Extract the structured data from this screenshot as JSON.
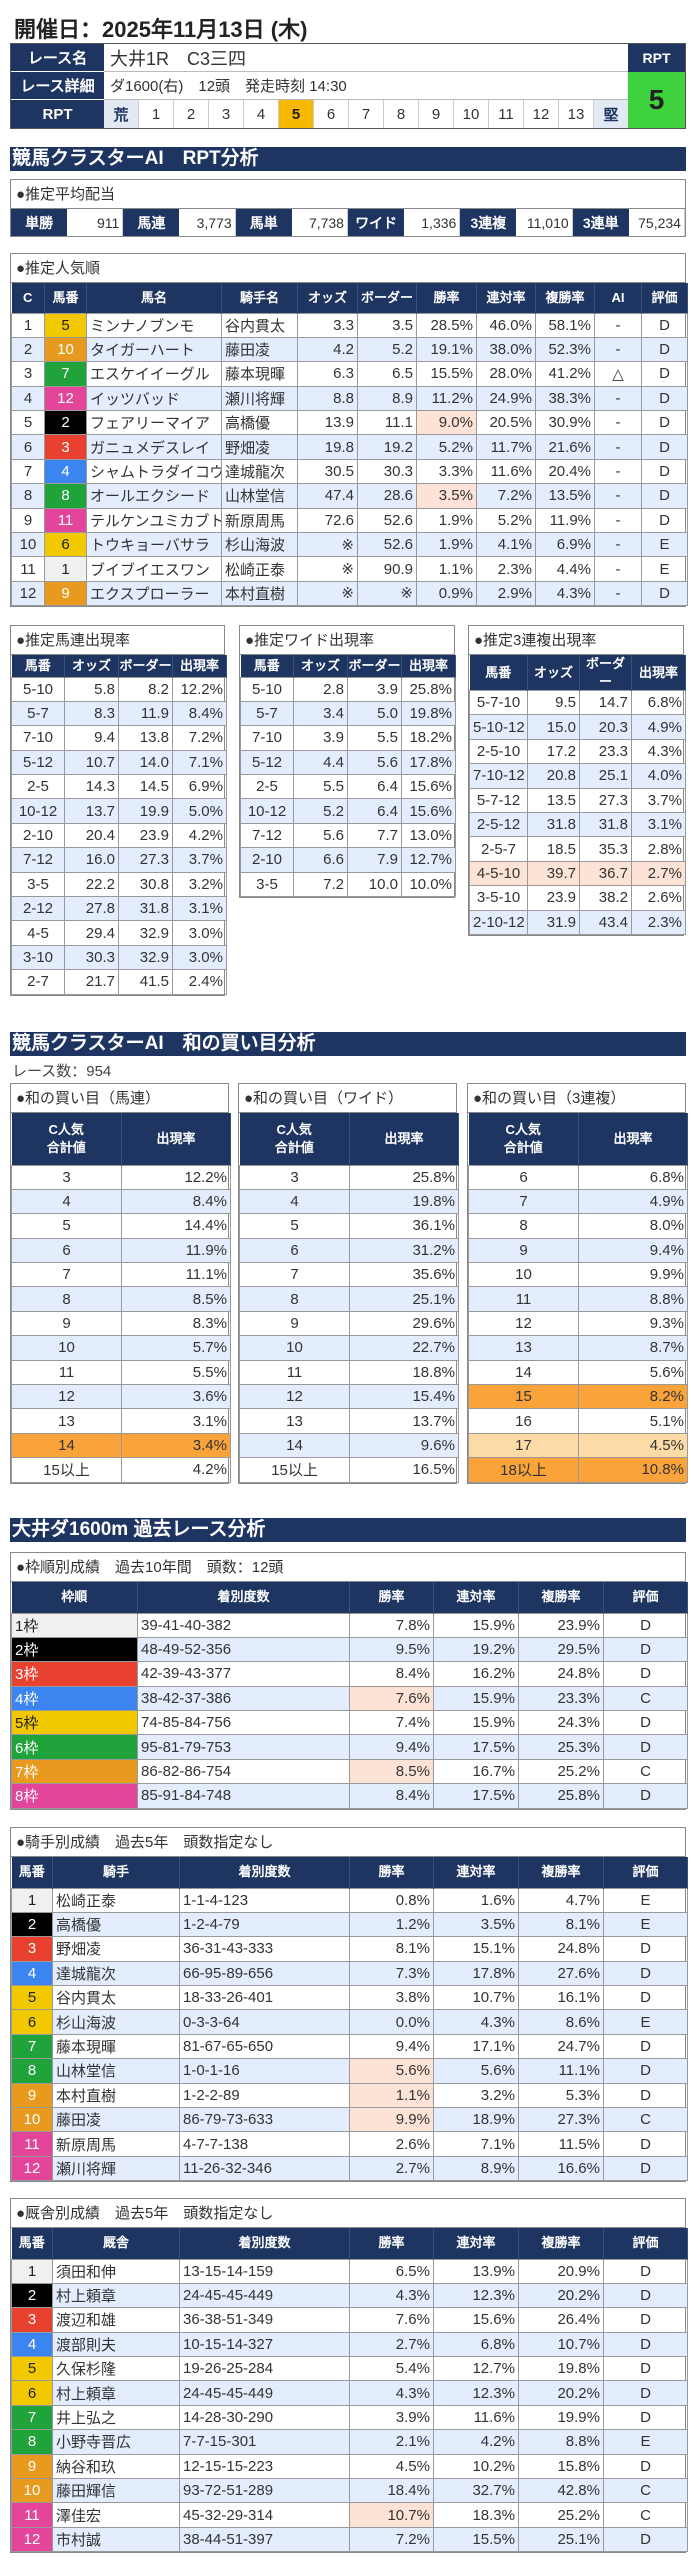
{
  "header": {
    "date": "開催日：2025年11月13日 (木)",
    "race_name_label": "レース名",
    "race_name": "大井1R　C3三四",
    "race_detail_label": "レース詳細",
    "race_detail": "ダ1600(右)　12頭　発走時刻 14:30",
    "rpt_label": "RPT",
    "rpt_scale": [
      "荒",
      "1",
      "2",
      "3",
      "4",
      "5",
      "6",
      "7",
      "8",
      "9",
      "10",
      "11",
      "12",
      "13",
      "堅"
    ],
    "rpt_selected": "5",
    "rpt_box_label": "RPT",
    "rpt_value": "5"
  },
  "colors": {
    "navy": "#1f3561",
    "alt_row": "#e3edfd",
    "pink": "#fde3d6",
    "orange": "#f9a33a",
    "light_orange": "#fddba7",
    "rpt_green": "#3fd23f",
    "rpt_selected": "#f7b900"
  },
  "frame_colors": {
    "1": [
      "#f0f0f0",
      "#222"
    ],
    "2": [
      "#000000",
      "#fff"
    ],
    "3": [
      "#e8412f",
      "#fff"
    ],
    "4": [
      "#3c85f0",
      "#fff"
    ],
    "5": [
      "#f2c800",
      "#222"
    ],
    "6": [
      "#1fa33a",
      "#fff"
    ],
    "7": [
      "#e89a1e",
      "#fff"
    ],
    "8": [
      "#e2459a",
      "#fff"
    ]
  },
  "horse_frame": {
    "1": "1",
    "2": "2",
    "3": "3",
    "4": "4",
    "5": "5",
    "6": "5",
    "7": "6",
    "8": "6",
    "9": "7",
    "10": "7",
    "11": "8",
    "12": "8"
  },
  "rpt_section": {
    "title": "競馬クラスターAI　RPT分析",
    "payout": {
      "title": "●推定平均配当",
      "items": [
        [
          "単勝",
          "911"
        ],
        [
          "馬連",
          "3,773"
        ],
        [
          "馬単",
          "7,738"
        ],
        [
          "ワイド",
          "1,336"
        ],
        [
          "3連複",
          "11,010"
        ],
        [
          "3連単",
          "75,234"
        ]
      ]
    },
    "popularity": {
      "title": "●推定人気順",
      "headers": [
        "C",
        "馬番",
        "馬名",
        "騎手名",
        "オッズ",
        "ボーダー",
        "勝率",
        "連対率",
        "複勝率",
        "AI",
        "評価"
      ],
      "rows": [
        [
          "1",
          "5",
          "ミンナノブンモ",
          "谷内貫太",
          "3.3",
          "3.5",
          "28.5%",
          "46.0%",
          "58.1%",
          "-",
          "D"
        ],
        [
          "2",
          "10",
          "タイガーハート",
          "藤田凌",
          "4.2",
          "5.2",
          "19.1%",
          "38.0%",
          "52.3%",
          "-",
          "D"
        ],
        [
          "3",
          "7",
          "エスケイイーグル",
          "藤本現暉",
          "6.3",
          "6.5",
          "15.5%",
          "28.0%",
          "41.2%",
          "△",
          "D"
        ],
        [
          "4",
          "12",
          "イッツバッド",
          "瀬川将輝",
          "8.8",
          "8.9",
          "11.2%",
          "24.9%",
          "38.3%",
          "-",
          "D"
        ],
        [
          "5",
          "2",
          "フェアリーマイア",
          "高橋優",
          "13.9",
          "11.1",
          "9.0%",
          "20.5%",
          "30.9%",
          "-",
          "D"
        ],
        [
          "6",
          "3",
          "ガニュメデスレイ",
          "野畑凌",
          "19.8",
          "19.2",
          "5.2%",
          "11.7%",
          "21.6%",
          "-",
          "D"
        ],
        [
          "7",
          "4",
          "シャムトラダイコウ",
          "達城龍次",
          "30.5",
          "30.3",
          "3.3%",
          "11.6%",
          "20.4%",
          "-",
          "D"
        ],
        [
          "8",
          "8",
          "オールエクシード",
          "山林堂信",
          "47.4",
          "28.6",
          "3.5%",
          "7.2%",
          "13.5%",
          "-",
          "D"
        ],
        [
          "9",
          "11",
          "テルケンユミカブト",
          "新原周馬",
          "72.6",
          "52.6",
          "1.9%",
          "5.2%",
          "11.9%",
          "-",
          "D"
        ],
        [
          "10",
          "6",
          "トウキョーバサラ",
          "杉山海波",
          "※",
          "52.6",
          "1.9%",
          "4.1%",
          "6.9%",
          "-",
          "E"
        ],
        [
          "11",
          "1",
          "ブイブイエスワン",
          "松崎正泰",
          "※",
          "90.9",
          "1.1%",
          "2.3%",
          "4.4%",
          "-",
          "E"
        ],
        [
          "12",
          "9",
          "エクスプローラー",
          "本村直樹",
          "※",
          "※",
          "0.9%",
          "2.9%",
          "4.3%",
          "-",
          "D"
        ]
      ],
      "highlights": [
        [
          4,
          6,
          "pink"
        ],
        [
          7,
          6,
          "pink"
        ]
      ]
    },
    "umaren": {
      "title": "●推定馬連出現率",
      "headers": [
        "馬番",
        "オッズ",
        "ボーダー",
        "出現率"
      ],
      "rows": [
        [
          "5-10",
          "5.8",
          "8.2",
          "12.2%"
        ],
        [
          "5-7",
          "8.3",
          "11.9",
          "8.4%"
        ],
        [
          "7-10",
          "9.4",
          "13.8",
          "7.2%"
        ],
        [
          "5-12",
          "10.7",
          "14.0",
          "7.1%"
        ],
        [
          "2-5",
          "14.3",
          "14.5",
          "6.9%"
        ],
        [
          "10-12",
          "13.7",
          "19.9",
          "5.0%"
        ],
        [
          "2-10",
          "20.4",
          "23.9",
          "4.2%"
        ],
        [
          "7-12",
          "16.0",
          "27.3",
          "3.7%"
        ],
        [
          "3-5",
          "22.2",
          "30.8",
          "3.2%"
        ],
        [
          "2-12",
          "27.8",
          "31.8",
          "3.1%"
        ],
        [
          "4-5",
          "29.4",
          "32.9",
          "3.0%"
        ],
        [
          "3-10",
          "30.3",
          "32.9",
          "3.0%"
        ],
        [
          "2-7",
          "21.7",
          "41.5",
          "2.4%"
        ]
      ],
      "highlights": []
    },
    "wide": {
      "title": "●推定ワイド出現率",
      "headers": [
        "馬番",
        "オッズ",
        "ボーダー",
        "出現率"
      ],
      "rows": [
        [
          "5-10",
          "2.8",
          "3.9",
          "25.8%"
        ],
        [
          "5-7",
          "3.4",
          "5.0",
          "19.8%"
        ],
        [
          "7-10",
          "3.9",
          "5.5",
          "18.2%"
        ],
        [
          "5-12",
          "4.4",
          "5.6",
          "17.8%"
        ],
        [
          "2-5",
          "5.5",
          "6.4",
          "15.6%"
        ],
        [
          "10-12",
          "5.2",
          "6.4",
          "15.6%"
        ],
        [
          "7-12",
          "5.6",
          "7.7",
          "13.0%"
        ],
        [
          "2-10",
          "6.6",
          "7.9",
          "12.7%"
        ],
        [
          "3-5",
          "7.2",
          "10.0",
          "10.0%"
        ]
      ],
      "highlights": []
    },
    "sanrenpuku": {
      "title": "●推定3連複出現率",
      "headers": [
        "馬番",
        "オッズ",
        "ボーダー",
        "出現率"
      ],
      "rows": [
        [
          "5-7-10",
          "9.5",
          "14.7",
          "6.8%"
        ],
        [
          "5-10-12",
          "15.0",
          "20.3",
          "4.9%"
        ],
        [
          "2-5-10",
          "17.2",
          "23.3",
          "4.3%"
        ],
        [
          "7-10-12",
          "20.8",
          "25.1",
          "4.0%"
        ],
        [
          "5-7-12",
          "13.5",
          "27.3",
          "3.7%"
        ],
        [
          "2-5-12",
          "31.8",
          "31.8",
          "3.1%"
        ],
        [
          "2-5-7",
          "18.5",
          "35.3",
          "2.8%"
        ],
        [
          "4-5-10",
          "39.7",
          "36.7",
          "2.7%"
        ],
        [
          "3-5-10",
          "23.9",
          "38.2",
          "2.6%"
        ],
        [
          "2-10-12",
          "31.9",
          "43.4",
          "2.3%"
        ]
      ],
      "highlights": [
        [
          7,
          0,
          "pink"
        ],
        [
          7,
          1,
          "pink"
        ],
        [
          7,
          2,
          "pink"
        ],
        [
          7,
          3,
          "pink"
        ]
      ]
    }
  },
  "sum_section": {
    "title": "競馬クラスターAI　和の買い目分析",
    "race_count": "レース数：954",
    "umaren": {
      "title": "●和の買い目（馬連）",
      "headers": [
        "C人気\n合計値",
        "出現率"
      ],
      "rows": [
        [
          "3",
          "12.2%"
        ],
        [
          "4",
          "8.4%"
        ],
        [
          "5",
          "14.4%"
        ],
        [
          "6",
          "11.9%"
        ],
        [
          "7",
          "11.1%"
        ],
        [
          "8",
          "8.5%"
        ],
        [
          "9",
          "8.3%"
        ],
        [
          "10",
          "5.7%"
        ],
        [
          "11",
          "5.5%"
        ],
        [
          "12",
          "3.6%"
        ],
        [
          "13",
          "3.1%"
        ],
        [
          "14",
          "3.4%"
        ],
        [
          "15以上",
          "4.2%"
        ]
      ],
      "highlights": [
        [
          11,
          0,
          "orange"
        ],
        [
          11,
          1,
          "orange"
        ]
      ]
    },
    "wide": {
      "title": "●和の買い目（ワイド）",
      "headers": [
        "C人気\n合計値",
        "出現率"
      ],
      "rows": [
        [
          "3",
          "25.8%"
        ],
        [
          "4",
          "19.8%"
        ],
        [
          "5",
          "36.1%"
        ],
        [
          "6",
          "31.2%"
        ],
        [
          "7",
          "35.6%"
        ],
        [
          "8",
          "25.1%"
        ],
        [
          "9",
          "29.6%"
        ],
        [
          "10",
          "22.7%"
        ],
        [
          "11",
          "18.8%"
        ],
        [
          "12",
          "15.4%"
        ],
        [
          "13",
          "13.7%"
        ],
        [
          "14",
          "9.6%"
        ],
        [
          "15以上",
          "16.5%"
        ]
      ],
      "highlights": []
    },
    "sanrenpuku": {
      "title": "●和の買い目（3連複）",
      "headers": [
        "C人気\n合計値",
        "出現率"
      ],
      "rows": [
        [
          "6",
          "6.8%"
        ],
        [
          "7",
          "4.9%"
        ],
        [
          "8",
          "8.0%"
        ],
        [
          "9",
          "9.4%"
        ],
        [
          "10",
          "9.9%"
        ],
        [
          "11",
          "8.8%"
        ],
        [
          "12",
          "9.3%"
        ],
        [
          "13",
          "8.7%"
        ],
        [
          "14",
          "5.6%"
        ],
        [
          "15",
          "8.2%"
        ],
        [
          "16",
          "5.1%"
        ],
        [
          "17",
          "4.5%"
        ],
        [
          "18以上",
          "10.8%"
        ]
      ],
      "highlights": [
        [
          9,
          0,
          "orange"
        ],
        [
          9,
          1,
          "orange"
        ],
        [
          11,
          0,
          "light_orange"
        ],
        [
          11,
          1,
          "light_orange"
        ],
        [
          12,
          0,
          "orange"
        ],
        [
          12,
          1,
          "orange"
        ]
      ]
    }
  },
  "past_section": {
    "title": "大井ダ1600m 過去レース分析",
    "frame": {
      "title": "●枠順別成績　過去10年間　頭数：12頭",
      "headers": [
        "枠順",
        "着別度数",
        "勝率",
        "連対率",
        "複勝率",
        "評価"
      ],
      "rows": [
        [
          "1枠",
          "39-41-40-382",
          "7.8%",
          "15.9%",
          "23.9%",
          "D"
        ],
        [
          "2枠",
          "48-49-52-356",
          "9.5%",
          "19.2%",
          "29.5%",
          "D"
        ],
        [
          "3枠",
          "42-39-43-377",
          "8.4%",
          "16.2%",
          "24.8%",
          "D"
        ],
        [
          "4枠",
          "38-42-37-386",
          "7.6%",
          "15.9%",
          "23.3%",
          "C"
        ],
        [
          "5枠",
          "74-85-84-756",
          "7.4%",
          "15.9%",
          "24.3%",
          "D"
        ],
        [
          "6枠",
          "95-81-79-753",
          "9.4%",
          "17.5%",
          "25.3%",
          "D"
        ],
        [
          "7枠",
          "86-82-86-754",
          "8.5%",
          "16.7%",
          "25.2%",
          "C"
        ],
        [
          "8枠",
          "85-91-84-748",
          "8.4%",
          "17.5%",
          "25.8%",
          "D"
        ]
      ],
      "highlights": [
        [
          3,
          2,
          "pink"
        ],
        [
          6,
          2,
          "pink"
        ]
      ]
    },
    "jockey": {
      "title": "●騎手別成績　過去5年　頭数指定なし",
      "headers": [
        "馬番",
        "騎手",
        "着別度数",
        "勝率",
        "連対率",
        "複勝率",
        "評価"
      ],
      "rows": [
        [
          "1",
          "松崎正泰",
          "1-1-4-123",
          "0.8%",
          "1.6%",
          "4.7%",
          "E"
        ],
        [
          "2",
          "高橋優",
          "1-2-4-79",
          "1.2%",
          "3.5%",
          "8.1%",
          "E"
        ],
        [
          "3",
          "野畑凌",
          "36-31-43-333",
          "8.1%",
          "15.1%",
          "24.8%",
          "D"
        ],
        [
          "4",
          "達城龍次",
          "66-95-89-656",
          "7.3%",
          "17.8%",
          "27.6%",
          "D"
        ],
        [
          "5",
          "谷内貫太",
          "18-33-26-401",
          "3.8%",
          "10.7%",
          "16.1%",
          "D"
        ],
        [
          "6",
          "杉山海波",
          "0-3-3-64",
          "0.0%",
          "4.3%",
          "8.6%",
          "E"
        ],
        [
          "7",
          "藤本現暉",
          "81-67-65-650",
          "9.4%",
          "17.1%",
          "24.7%",
          "D"
        ],
        [
          "8",
          "山林堂信",
          "1-0-1-16",
          "5.6%",
          "5.6%",
          "11.1%",
          "D"
        ],
        [
          "9",
          "本村直樹",
          "1-2-2-89",
          "1.1%",
          "3.2%",
          "5.3%",
          "D"
        ],
        [
          "10",
          "藤田凌",
          "86-79-73-633",
          "9.9%",
          "18.9%",
          "27.3%",
          "C"
        ],
        [
          "11",
          "新原周馬",
          "4-7-7-138",
          "2.6%",
          "7.1%",
          "11.5%",
          "D"
        ],
        [
          "12",
          "瀬川将輝",
          "11-26-32-346",
          "2.7%",
          "8.9%",
          "16.6%",
          "D"
        ]
      ],
      "highlights": [
        [
          7,
          3,
          "pink"
        ],
        [
          8,
          3,
          "pink"
        ],
        [
          9,
          3,
          "pink"
        ]
      ]
    },
    "trainer": {
      "title": "●厩舎別成績　過去5年　頭数指定なし",
      "headers": [
        "馬番",
        "厩舎",
        "着別度数",
        "勝率",
        "連対率",
        "複勝率",
        "評価"
      ],
      "rows": [
        [
          "1",
          "須田和伸",
          "13-15-14-159",
          "6.5%",
          "13.9%",
          "20.9%",
          "D"
        ],
        [
          "2",
          "村上頼章",
          "24-45-45-449",
          "4.3%",
          "12.3%",
          "20.2%",
          "D"
        ],
        [
          "3",
          "渡辺和雄",
          "36-38-51-349",
          "7.6%",
          "15.6%",
          "26.4%",
          "D"
        ],
        [
          "4",
          "渡部則夫",
          "10-15-14-327",
          "2.7%",
          "6.8%",
          "10.7%",
          "D"
        ],
        [
          "5",
          "久保杉隆",
          "19-26-25-284",
          "5.4%",
          "12.7%",
          "19.8%",
          "D"
        ],
        [
          "6",
          "村上頼章",
          "24-45-45-449",
          "4.3%",
          "12.3%",
          "20.2%",
          "D"
        ],
        [
          "7",
          "井上弘之",
          "14-28-30-290",
          "3.9%",
          "11.6%",
          "19.9%",
          "D"
        ],
        [
          "8",
          "小野寺晋広",
          "7-7-15-301",
          "2.1%",
          "4.2%",
          "8.8%",
          "E"
        ],
        [
          "9",
          "納谷和玖",
          "12-15-15-223",
          "4.5%",
          "10.2%",
          "15.8%",
          "D"
        ],
        [
          "10",
          "藤田輝信",
          "93-72-51-289",
          "18.4%",
          "32.7%",
          "42.8%",
          "C"
        ],
        [
          "11",
          "澤佳宏",
          "45-32-29-314",
          "10.7%",
          "18.3%",
          "25.2%",
          "C"
        ],
        [
          "12",
          "市村誠",
          "38-44-51-397",
          "7.2%",
          "15.5%",
          "25.1%",
          "D"
        ]
      ],
      "highlights": [
        [
          10,
          3,
          "pink"
        ]
      ]
    }
  }
}
